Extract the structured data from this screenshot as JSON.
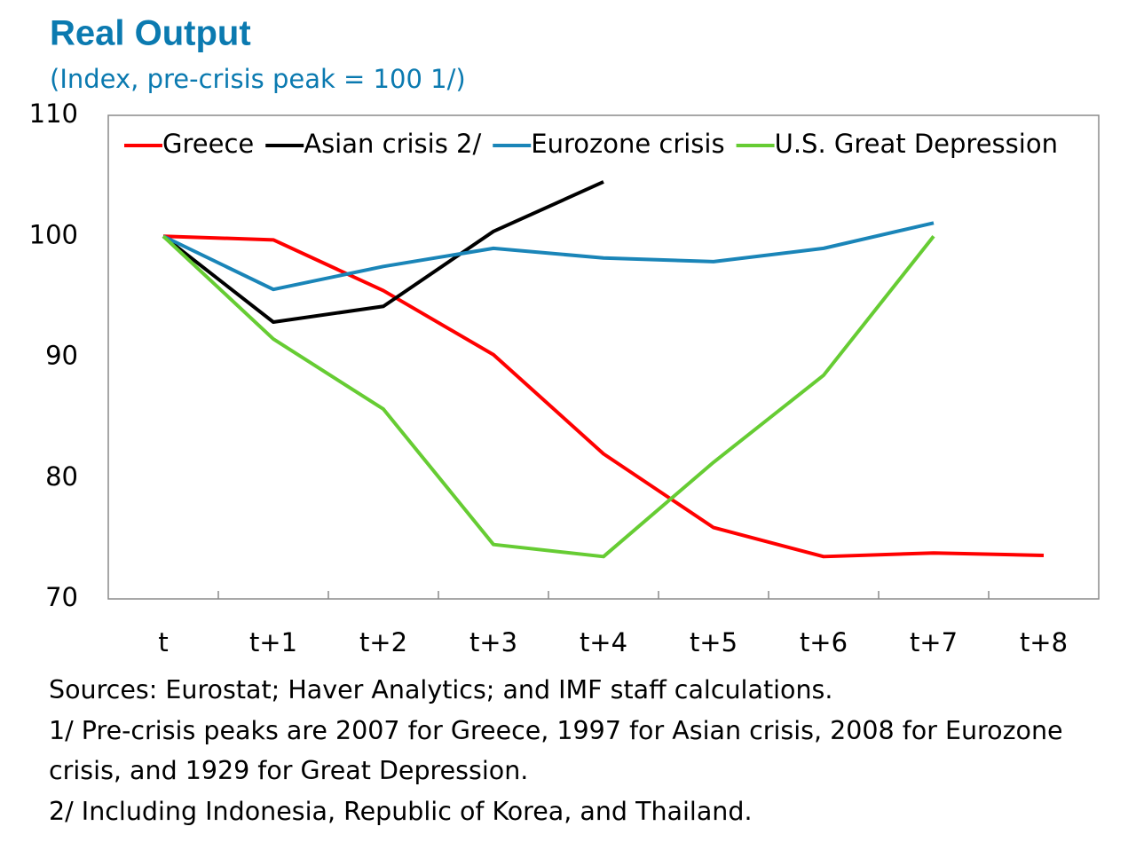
{
  "chart_data": {
    "type": "line",
    "title": "Real Output",
    "subtitle": "(Index, pre-crisis peak = 100 1/)",
    "categories": [
      "t",
      "t+1",
      "t+2",
      "t+3",
      "t+4",
      "t+5",
      "t+6",
      "t+7",
      "t+8"
    ],
    "series": [
      {
        "name": "Greece",
        "color": "#ff0000",
        "values": [
          100,
          99.7,
          95.5,
          90.2,
          82.0,
          75.9,
          73.5,
          73.8,
          73.6
        ]
      },
      {
        "name": "Asian crisis 2/",
        "color": "#000000",
        "values": [
          100,
          92.9,
          94.2,
          100.4,
          104.5,
          null,
          null,
          null,
          null
        ]
      },
      {
        "name": "Eurozone crisis",
        "color": "#1a85b8",
        "values": [
          100,
          95.6,
          97.5,
          99.0,
          98.2,
          97.9,
          99.0,
          101.1,
          null
        ]
      },
      {
        "name": "U.S. Great Depression",
        "color": "#66cc33",
        "values": [
          100,
          91.5,
          85.7,
          74.5,
          73.5,
          81.3,
          88.5,
          100,
          null
        ]
      }
    ],
    "ylim": [
      70,
      110
    ],
    "yticks": [
      70,
      80,
      90,
      100,
      110
    ],
    "grid": false,
    "legend": "top",
    "notes": [
      "Sources: Eurostat; Haver Analytics; and IMF staff calculations.",
      "1/ Pre-crisis peaks are 2007 for Greece, 1997 for Asian crisis, 2008 for Eurozone crisis, and 1929 for Great Depression.",
      "2/ Including Indonesia, Republic of Korea, and Thailand."
    ]
  }
}
